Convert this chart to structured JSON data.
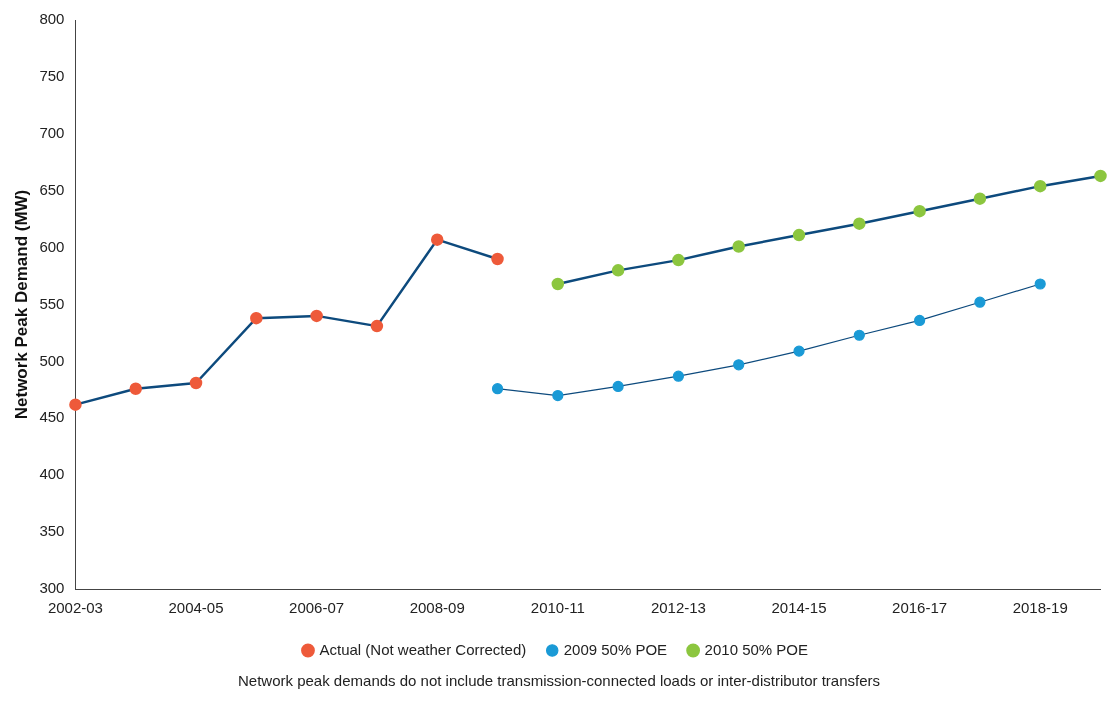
{
  "chart_data": {
    "type": "line",
    "ylabel": "Network Peak Demand (MW)",
    "categories": [
      "2002-03",
      null,
      "2004-05",
      null,
      "2006-07",
      null,
      "2008-09",
      null,
      "2010-11",
      null,
      "2012-13",
      null,
      "2014-15",
      null,
      "2016-17",
      null,
      "2018-19",
      null
    ],
    "series": [
      {
        "name": "Actual (Not weather Corrected)",
        "color": "#ee5a3a",
        "values": [
          462,
          476,
          481,
          538,
          540,
          531,
          607,
          590,
          null,
          null,
          null,
          null,
          null,
          null,
          null,
          null,
          null,
          null
        ]
      },
      {
        "name": "2009 50% POE",
        "color": "#1a9ad6",
        "values": [
          null,
          null,
          null,
          null,
          null,
          null,
          null,
          476,
          470,
          478,
          487,
          497,
          509,
          523,
          536,
          552,
          568,
          null
        ]
      },
      {
        "name": "2010 50% POE",
        "color": "#8cc63f",
        "values": [
          null,
          null,
          null,
          null,
          null,
          null,
          null,
          null,
          568,
          580,
          589,
          601,
          611,
          621,
          632,
          643,
          654,
          663
        ]
      }
    ],
    "ylim": [
      300,
      800
    ],
    "yticks": [
      300,
      350,
      400,
      450,
      500,
      550,
      600,
      650,
      700,
      750,
      800
    ],
    "grid": false,
    "legend": "bottom",
    "marker": "circle",
    "line_style": "solid",
    "annotations": [
      "Network peak demands do not include transmission-connected loads or inter-distributor transfers"
    ]
  }
}
